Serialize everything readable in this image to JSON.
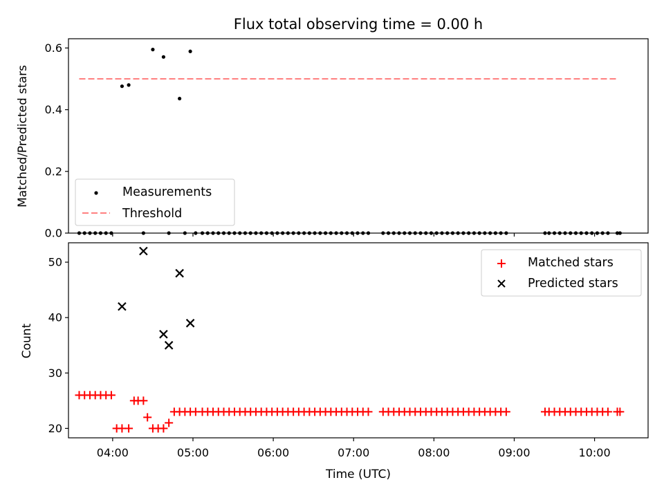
{
  "title": "Flux total observing time = 0.00 h",
  "colors": {
    "measurements": "#000000",
    "threshold": "#ff7f7f",
    "matched": "#ff0000",
    "predicted": "#000000",
    "axes": "#000000",
    "legend_border": "#cccccc"
  },
  "chart_data": [
    {
      "type": "scatter",
      "panel": "top",
      "title": "Flux total observing time = 0.00 h",
      "xlabel": "",
      "ylabel": "Matched/Predicted stars",
      "xlim": [
        "03:27",
        "10:40"
      ],
      "ylim": [
        0,
        0.63
      ],
      "yticks": [
        0,
        0.2,
        0.4,
        0.6
      ],
      "ytick_labels": [
        "0.0",
        "0.2",
        "0.4",
        "0.6"
      ],
      "grid": false,
      "legend": {
        "placement": "lower-left",
        "entries": [
          "Measurements",
          "Threshold"
        ]
      },
      "series": [
        {
          "name": "Measurements",
          "kind": "points",
          "x": [
            "03:35",
            "03:39",
            "03:43",
            "03:47",
            "03:51",
            "03:55",
            "03:59",
            "04:07",
            "04:12",
            "04:23",
            "04:30",
            "04:38",
            "04:42",
            "04:50",
            "04:54",
            "04:58",
            "05:02",
            "05:07",
            "05:11",
            "05:15",
            "05:19",
            "05:23",
            "05:27",
            "05:31",
            "05:35",
            "05:39",
            "05:43",
            "05:47",
            "05:51",
            "05:55",
            "05:59",
            "06:03",
            "06:07",
            "06:11",
            "06:15",
            "06:19",
            "06:23",
            "06:27",
            "06:31",
            "06:35",
            "06:39",
            "06:43",
            "06:47",
            "06:51",
            "06:55",
            "06:59",
            "07:03",
            "07:07",
            "07:11",
            "07:22",
            "07:26",
            "07:30",
            "07:34",
            "07:38",
            "07:42",
            "07:46",
            "07:50",
            "07:54",
            "07:58",
            "08:02",
            "08:06",
            "08:10",
            "08:14",
            "08:18",
            "08:22",
            "08:26",
            "08:30",
            "08:34",
            "08:38",
            "08:42",
            "08:46",
            "08:50",
            "08:54",
            "09:23",
            "09:26",
            "09:30",
            "09:34",
            "09:38",
            "09:42",
            "09:46",
            "09:50",
            "09:54",
            "09:58",
            "10:02",
            "10:06",
            "10:10",
            "10:17",
            "10:19"
          ],
          "y": [
            0,
            0,
            0,
            0,
            0,
            0,
            0,
            0.476,
            0.48,
            0,
            0.595,
            0.571,
            0,
            0.436,
            0,
            0.589,
            0,
            0,
            0,
            0,
            0,
            0,
            0,
            0,
            0,
            0,
            0,
            0,
            0,
            0,
            0,
            0,
            0,
            0,
            0,
            0,
            0,
            0,
            0,
            0,
            0,
            0,
            0,
            0,
            0,
            0,
            0,
            0,
            0,
            0,
            0,
            0,
            0,
            0,
            0,
            0,
            0,
            0,
            0,
            0,
            0,
            0,
            0,
            0,
            0,
            0,
            0,
            0,
            0,
            0,
            0,
            0,
            0,
            0,
            0,
            0,
            0,
            0,
            0,
            0,
            0,
            0,
            0,
            0,
            0,
            0,
            0,
            0
          ]
        },
        {
          "name": "Threshold",
          "kind": "dashed-line",
          "x": [
            "03:35",
            "10:17"
          ],
          "y": [
            0.5,
            0.5
          ]
        }
      ]
    },
    {
      "type": "scatter",
      "panel": "bottom",
      "xlabel": "Time (UTC)",
      "ylabel": "Count",
      "xlim": [
        "03:27",
        "10:40"
      ],
      "ylim": [
        18.3,
        53.5
      ],
      "xticks": [
        "04:00",
        "05:00",
        "06:00",
        "07:00",
        "08:00",
        "09:00",
        "10:00"
      ],
      "xtick_labels": [
        "04:00",
        "05:00",
        "06:00",
        "07:00",
        "08:00",
        "09:00",
        "10:00"
      ],
      "yticks": [
        20,
        30,
        40,
        50
      ],
      "ytick_labels": [
        "20",
        "30",
        "40",
        "50"
      ],
      "grid": false,
      "legend": {
        "placement": "top-right",
        "entries": [
          "Matched stars",
          "Predicted stars"
        ]
      },
      "series": [
        {
          "name": "Matched stars",
          "kind": "plus",
          "x": [
            "03:35",
            "03:39",
            "03:43",
            "03:47",
            "03:51",
            "03:55",
            "03:59",
            "04:03",
            "04:07",
            "04:12",
            "04:16",
            "04:19",
            "04:23",
            "04:26",
            "04:30",
            "04:34",
            "04:38",
            "04:42",
            "04:46",
            "04:50",
            "04:54",
            "04:58",
            "05:02",
            "05:07",
            "05:11",
            "05:15",
            "05:19",
            "05:23",
            "05:27",
            "05:31",
            "05:35",
            "05:39",
            "05:43",
            "05:47",
            "05:51",
            "05:55",
            "05:59",
            "06:03",
            "06:07",
            "06:11",
            "06:15",
            "06:19",
            "06:23",
            "06:27",
            "06:31",
            "06:35",
            "06:39",
            "06:43",
            "06:47",
            "06:51",
            "06:55",
            "06:59",
            "07:03",
            "07:07",
            "07:11",
            "07:22",
            "07:26",
            "07:30",
            "07:34",
            "07:38",
            "07:42",
            "07:46",
            "07:50",
            "07:54",
            "07:58",
            "08:02",
            "08:06",
            "08:10",
            "08:14",
            "08:18",
            "08:22",
            "08:26",
            "08:30",
            "08:34",
            "08:38",
            "08:42",
            "08:46",
            "08:50",
            "08:54",
            "09:23",
            "09:26",
            "09:30",
            "09:34",
            "09:38",
            "09:42",
            "09:46",
            "09:50",
            "09:54",
            "09:58",
            "10:02",
            "10:06",
            "10:10",
            "10:17",
            "10:19"
          ],
          "y": [
            26,
            26,
            26,
            26,
            26,
            26,
            26,
            20,
            20,
            20,
            25,
            25,
            25,
            22,
            20,
            20,
            20,
            21,
            23,
            23,
            23,
            23,
            23,
            23,
            23,
            23,
            23,
            23,
            23,
            23,
            23,
            23,
            23,
            23,
            23,
            23,
            23,
            23,
            23,
            23,
            23,
            23,
            23,
            23,
            23,
            23,
            23,
            23,
            23,
            23,
            23,
            23,
            23,
            23,
            23,
            23,
            23,
            23,
            23,
            23,
            23,
            23,
            23,
            23,
            23,
            23,
            23,
            23,
            23,
            23,
            23,
            23,
            23,
            23,
            23,
            23,
            23,
            23,
            23,
            23,
            23,
            23,
            23,
            23,
            23,
            23,
            23,
            23,
            23,
            23,
            23,
            23,
            23,
            23
          ]
        },
        {
          "name": "Predicted stars",
          "kind": "x",
          "x": [
            "04:07",
            "04:23",
            "04:38",
            "04:42",
            "04:50",
            "04:58"
          ],
          "y": [
            42,
            52,
            37,
            35,
            48,
            39
          ]
        }
      ]
    }
  ]
}
